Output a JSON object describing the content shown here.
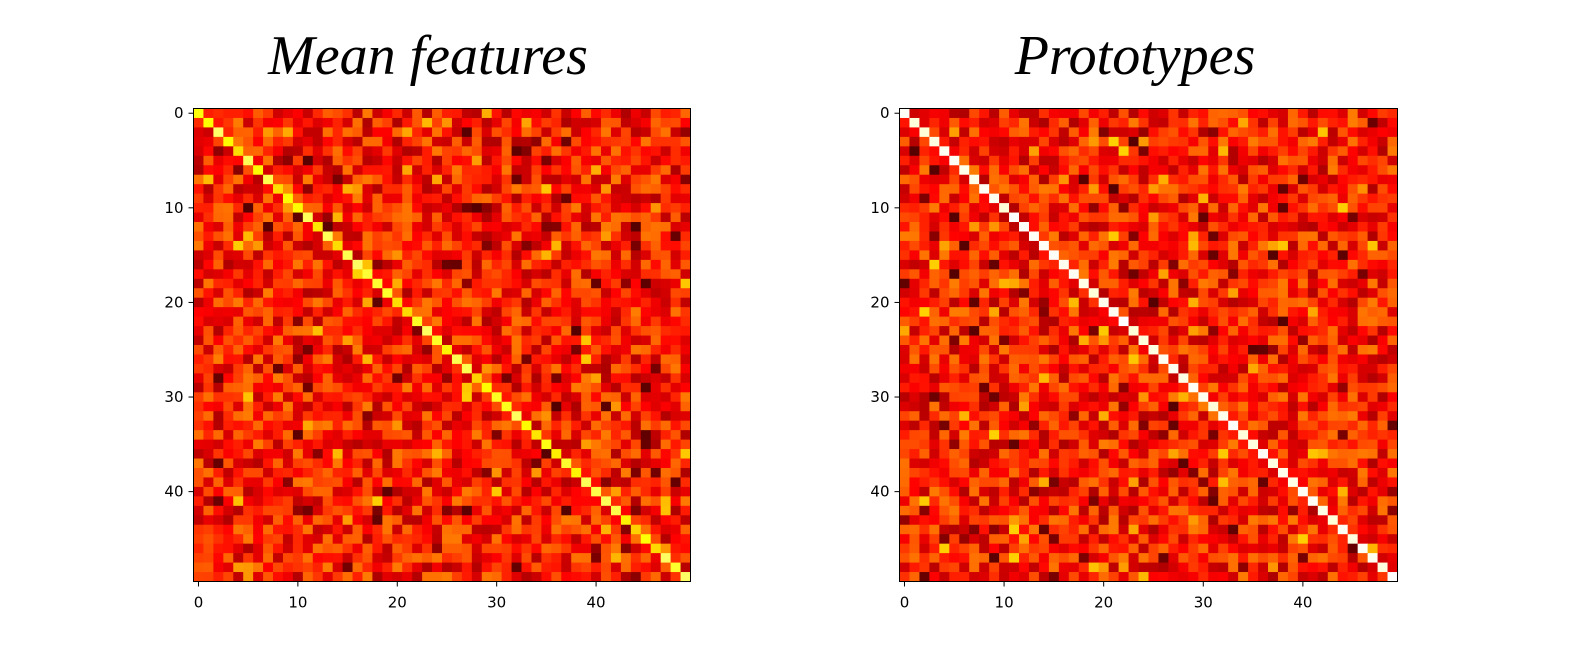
{
  "chart_data": [
    {
      "type": "heatmap",
      "title": "Mean features",
      "xlabel": "",
      "ylabel": "",
      "size": 50,
      "xlim": [
        -0.5,
        49.5
      ],
      "ylim": [
        49.5,
        -0.5
      ],
      "x_ticks": [
        "0",
        "10",
        "20",
        "30",
        "40"
      ],
      "y_ticks": [
        "0",
        "10",
        "20",
        "30",
        "40"
      ],
      "colormap": "hot",
      "diagonal_value": 0.85,
      "off_diagonal_range": [
        0.25,
        0.55
      ],
      "grid": false,
      "legend": "none"
    },
    {
      "type": "heatmap",
      "title": "Prototypes",
      "xlabel": "",
      "ylabel": "",
      "size": 50,
      "xlim": [
        -0.5,
        49.5
      ],
      "ylim": [
        49.5,
        -0.5
      ],
      "x_ticks": [
        "0",
        "10",
        "20",
        "30",
        "40"
      ],
      "y_ticks": [
        "0",
        "10",
        "20",
        "30",
        "40"
      ],
      "colormap": "hot",
      "diagonal_value": 1.0,
      "off_diagonal_range": [
        0.25,
        0.55
      ],
      "grid": false,
      "legend": "none"
    }
  ],
  "colors": {
    "hot_black": "#000000",
    "hot_red": "#ff0000",
    "hot_yellow": "#ffff00",
    "hot_white": "#ffffff"
  }
}
